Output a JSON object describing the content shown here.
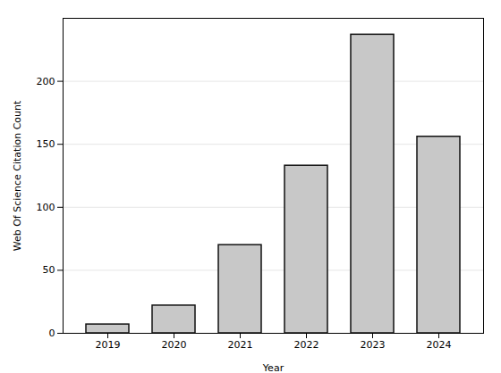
{
  "chart_data": {
    "type": "bar",
    "categories": [
      "2019",
      "2020",
      "2021",
      "2022",
      "2023",
      "2024"
    ],
    "values": [
      7,
      22,
      70,
      133,
      237,
      156
    ],
    "color": "#c8c8c8",
    "xlabel": "Year",
    "ylabel": "Web Of Science Citation Count",
    "ylim": [
      0,
      250
    ],
    "yticks": [
      0,
      50,
      100,
      150,
      200
    ],
    "grid": true
  }
}
